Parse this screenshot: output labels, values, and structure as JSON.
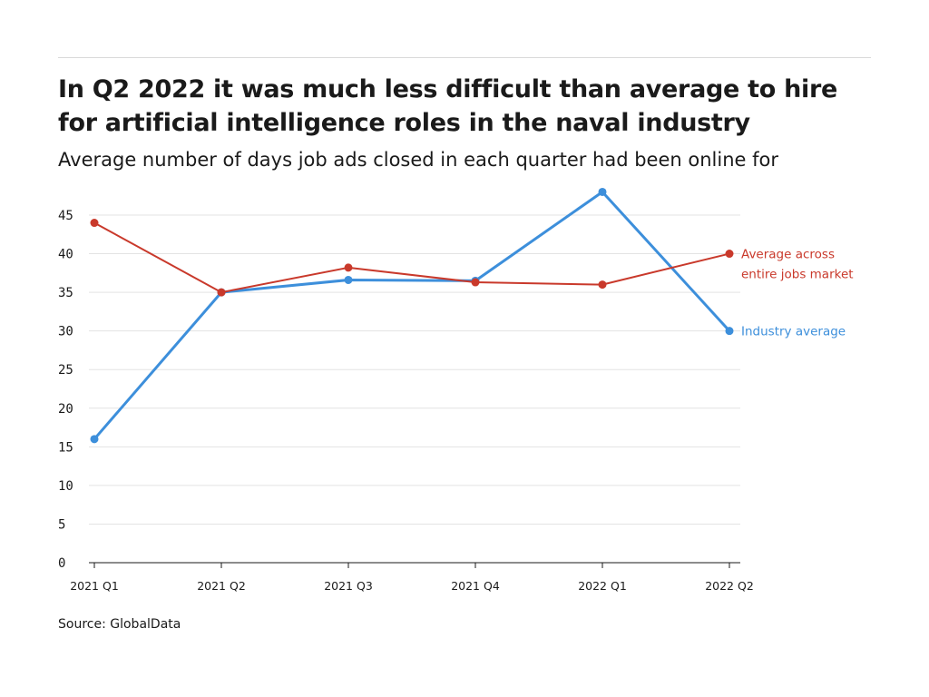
{
  "title": "In Q2 2022 it was much less difficult than average to hire for artificial intelligence roles in the naval industry",
  "subtitle": "Average number of days job ads closed in each quarter had been online for",
  "source": "Source: GlobalData",
  "chart_data": {
    "type": "line",
    "categories": [
      "2021 Q1",
      "2021 Q2",
      "2021 Q3",
      "2021 Q4",
      "2022 Q1",
      "2022 Q2"
    ],
    "y_ticks": [
      "0",
      "5",
      "10",
      "15",
      "20",
      "25",
      "30",
      "35",
      "40",
      "45"
    ],
    "ylim": [
      0,
      45
    ],
    "grid": true,
    "series": [
      {
        "name": "Industry average",
        "label_lines": [
          "Industry average"
        ],
        "color": "#3d8fdb",
        "values": [
          16,
          35,
          36.6,
          36.5,
          48,
          30
        ]
      },
      {
        "name": "Average across entire jobs market",
        "label_lines": [
          "Average across",
          "entire jobs market"
        ],
        "color": "#c9392b",
        "values": [
          44,
          35,
          38.2,
          36.3,
          36,
          40
        ]
      }
    ]
  }
}
